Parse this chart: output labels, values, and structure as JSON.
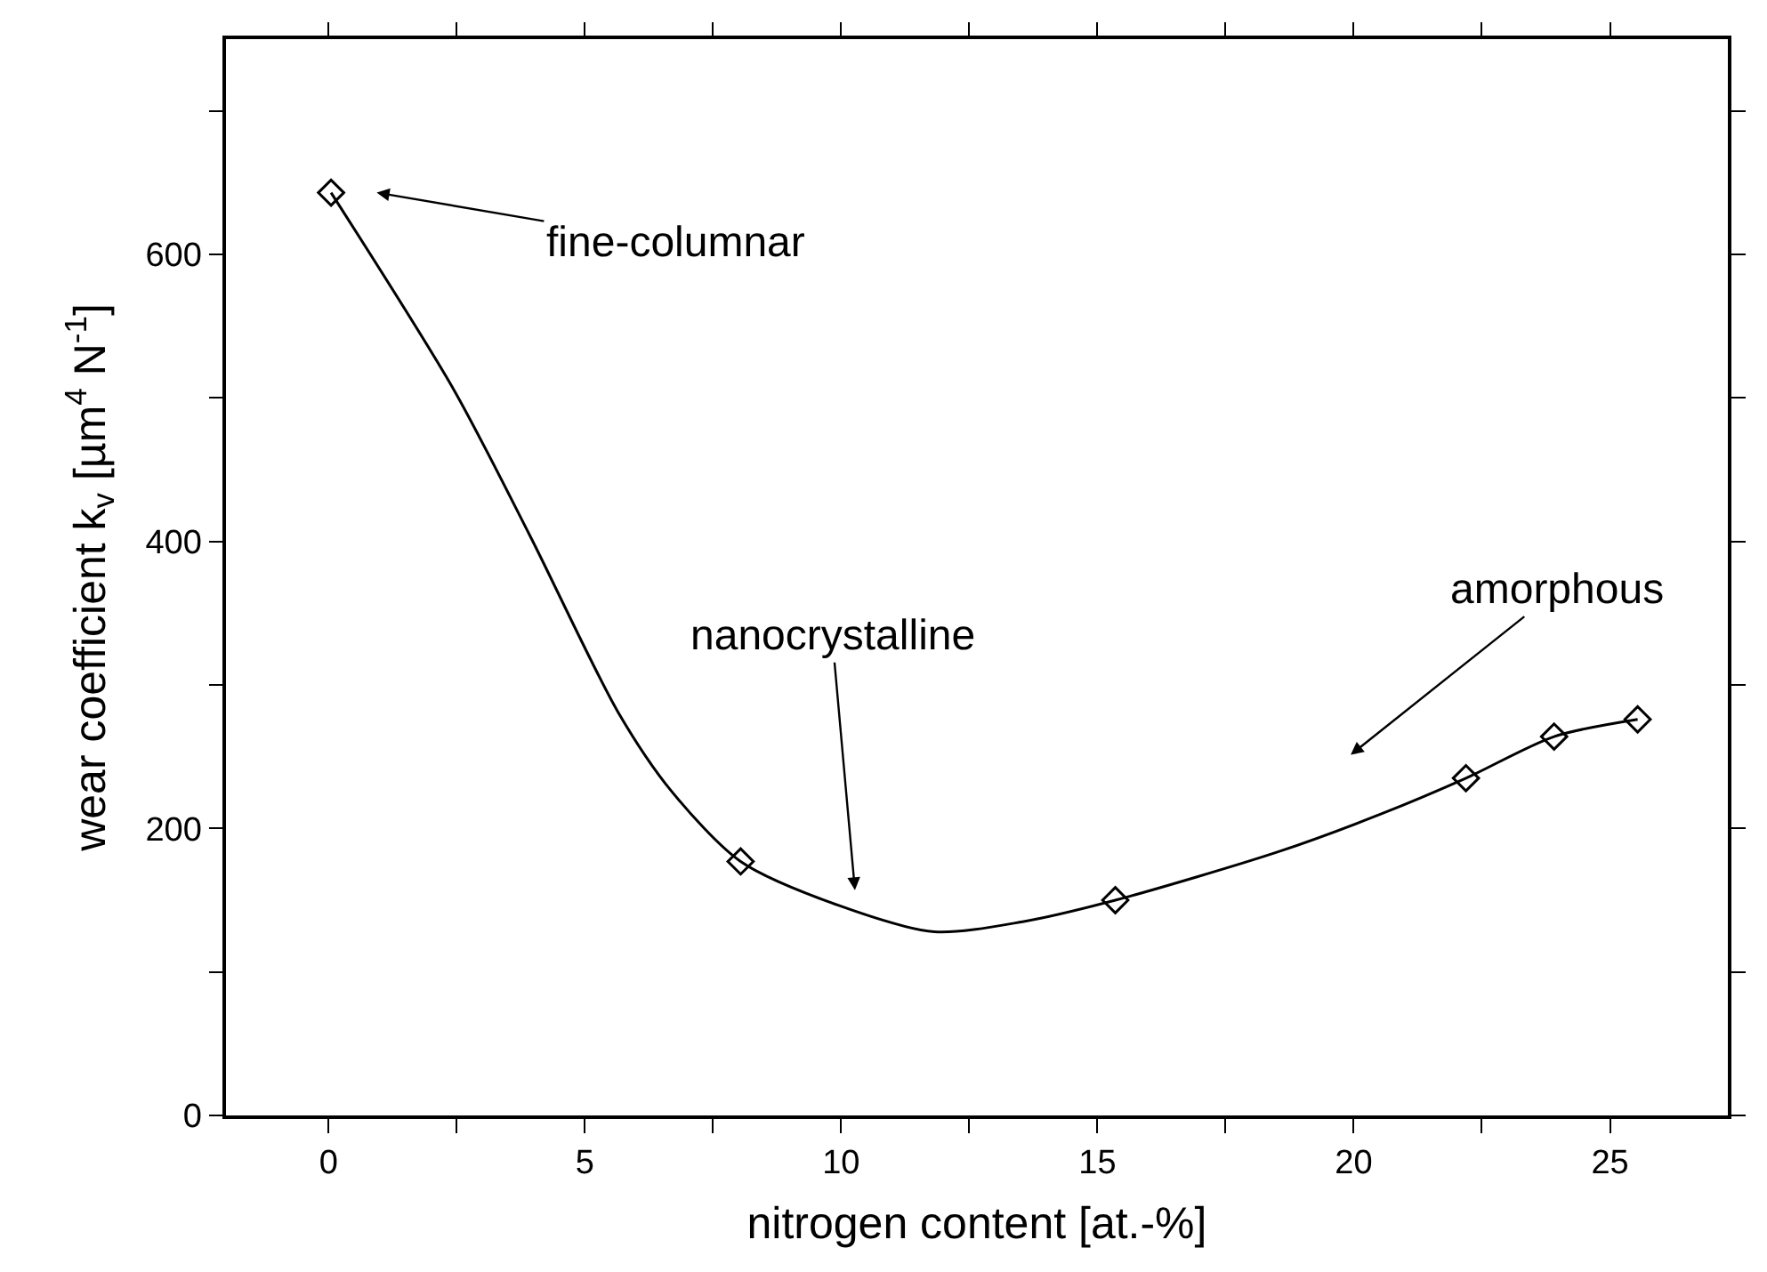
{
  "chart_data": {
    "type": "scatter",
    "xlabel": "nitrogen content [at.-%]",
    "ylabel": "wear coefficient k$_{v}$ [µm$^{4}$ N$^{-1}$]",
    "xlim": [
      -2,
      27.3
    ],
    "xticks": [
      0,
      {
        "value": 2.5,
        "label": null
      },
      5,
      {
        "value": 7.5,
        "label": null
      },
      10,
      {
        "value": 12.5,
        "label": null
      },
      15,
      {
        "value": 17.5,
        "label": null
      },
      20,
      {
        "value": 22.5,
        "label": null
      },
      25
    ],
    "ylim": [
      0,
      750
    ],
    "yticks": [
      0,
      {
        "value": 100,
        "label": null
      },
      200,
      {
        "value": 300,
        "label": null
      },
      400,
      {
        "value": 500,
        "label": null
      },
      600,
      {
        "value": 700,
        "label": null
      }
    ],
    "series": [
      {
        "type": "line",
        "color": "#000000",
        "marker": "none",
        "line_style": "solid",
        "x": [
          0.05,
          2.44,
          3.93,
          5.65,
          6.69,
          8.04,
          9.98,
          11.82,
          13.54,
          15.35,
          18.55,
          20.53,
          22.19,
          23.91,
          25.54
        ],
        "values": [
          643,
          506,
          404,
          281,
          226,
          177,
          146,
          128,
          135,
          150,
          184,
          210,
          235,
          264,
          276
        ]
      },
      {
        "color": "#000000",
        "marker": "diamond",
        "x": [
          0.05,
          8.04,
          15.35,
          22.19,
          23.91,
          25.54
        ],
        "values": [
          643,
          177,
          150,
          235,
          264,
          276
        ]
      }
    ],
    "annotations": [
      "fine-columnar",
      "nanocrystalline",
      "amorphous"
    ]
  }
}
